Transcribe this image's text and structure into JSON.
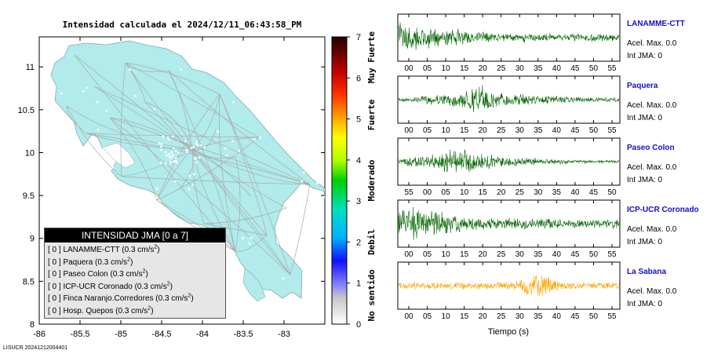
{
  "map": {
    "title": "Intensidad calculada el 2024/12/11_06:43:58_PM",
    "xticks": [
      "-86",
      "-85.5",
      "-85",
      "-84.5",
      "-84",
      "-83.5",
      "-83"
    ],
    "yticks": [
      "11",
      "10.5",
      "10",
      "9.5",
      "9",
      "8.5",
      "8"
    ],
    "xlim": [
      -86,
      -82.5
    ],
    "ylim": [
      8,
      11.35
    ]
  },
  "colorbar": {
    "ticks": [
      "0",
      "1",
      "2",
      "3",
      "4",
      "5",
      "6",
      "7"
    ],
    "labels": [
      "No sentido",
      "Debil",
      "Moderado",
      "Fuerte",
      "Muy Fuerte"
    ],
    "range": [
      0,
      7
    ]
  },
  "legend": {
    "header": "INTENSIDAD JMA [0 a 7]",
    "rows": [
      {
        "text": "[ 0 ]  LANAMME-CTT (0.3 cm/s",
        "sup": "2",
        "end": ")"
      },
      {
        "text": "[ 0 ]  Paquera (0.3 cm/s",
        "sup": "2",
        "end": ")"
      },
      {
        "text": "[ 0 ]  Paseo Colon (0.3 cm/s",
        "sup": "2",
        "end": ")"
      },
      {
        "text": "[ 0 ]  ICP-UCR Coronado (0.3 cm/s",
        "sup": "2",
        "end": ")"
      },
      {
        "text": "[ 0 ]  Finca Naranjo.Corredores (0.3 cm/s",
        "sup": "2",
        "end": ")"
      },
      {
        "text": "[ 0 ]  Hosp. Quepos (0.3 cm/s",
        "sup": "2",
        "end": ")"
      }
    ]
  },
  "chart_data": {
    "type": "line",
    "xlabel": "Tiempo (s)",
    "series": [
      {
        "name": "LANAMME-CTT",
        "acel": "Acel. Max. 0.0",
        "int": "Int JMA: 0",
        "color": "#006400",
        "ticks": [
          "00",
          "05",
          "10",
          "15",
          "20",
          "25",
          "30",
          "35",
          "40",
          "45",
          "50",
          "55"
        ],
        "envelope": [
          0.9,
          0.7,
          0.5,
          0.45,
          0.3,
          0.25,
          0.25,
          0.22,
          0.2,
          0.2,
          0.2,
          0.2
        ],
        "seed": 3
      },
      {
        "name": "Paquera",
        "acel": "Acel. Max. 0.0",
        "int": "Int JMA: 0",
        "color": "#006400",
        "ticks": [
          "00",
          "05",
          "10",
          "15",
          "20",
          "25",
          "30",
          "35",
          "40",
          "45",
          "50",
          "55"
        ],
        "envelope": [
          0.1,
          0.15,
          0.3,
          0.4,
          0.85,
          0.45,
          0.3,
          0.25,
          0.2,
          0.15,
          0.12,
          0.1
        ],
        "seed": 7
      },
      {
        "name": "Paseo Colon",
        "acel": "Acel. Max. 0.0",
        "int": "Int JMA: 0",
        "color": "#006400",
        "ticks": [
          "55",
          "00",
          "05",
          "10",
          "15",
          "20",
          "25",
          "30",
          "35",
          "40",
          "45",
          "50"
        ],
        "envelope": [
          0.15,
          0.3,
          0.45,
          0.8,
          0.5,
          0.35,
          0.25,
          0.2,
          0.12,
          0.1,
          0.08,
          0.08
        ],
        "seed": 11
      },
      {
        "name": "ICP-UCR Coronado",
        "acel": "Acel. Max. 0.0",
        "int": "Int JMA: 0",
        "color": "#006400",
        "ticks": [
          "00",
          "05",
          "10",
          "15",
          "20",
          "25",
          "30",
          "35",
          "40",
          "45",
          "50",
          "55"
        ],
        "envelope": [
          0.7,
          0.9,
          0.7,
          0.45,
          0.35,
          0.3,
          0.3,
          0.28,
          0.25,
          0.25,
          0.25,
          0.25
        ],
        "seed": 17
      },
      {
        "name": "La Sabana",
        "acel": "Acel. Max. 0.0",
        "int": "Int JMA: 0",
        "color": "#ffa500",
        "ticks": [
          "00",
          "05",
          "10",
          "15",
          "20",
          "25",
          "30",
          "35",
          "40",
          "45",
          "50",
          "55"
        ],
        "envelope": [
          0.2,
          0.2,
          0.18,
          0.2,
          0.2,
          0.2,
          0.25,
          0.95,
          0.25,
          0.2,
          0.18,
          0.18
        ],
        "seed": 23
      }
    ]
  },
  "footer": "LISUCR 20241212004401"
}
